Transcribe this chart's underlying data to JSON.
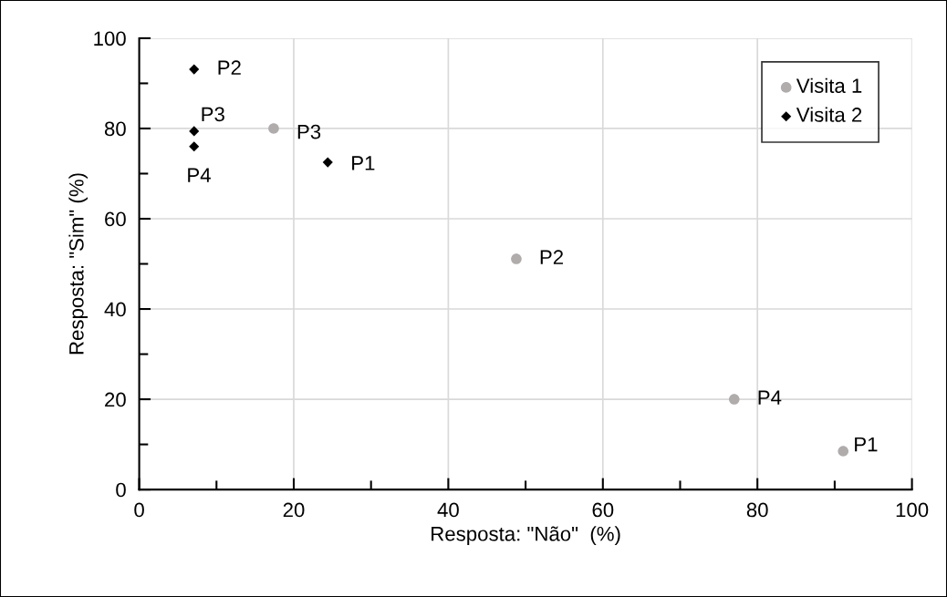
{
  "chart_data": {
    "type": "scatter",
    "xlabel": "Resposta: \"Não\"  (%)",
    "ylabel": "Resposta: \"Sim\" (%)",
    "xlim": [
      0,
      100
    ],
    "ylim": [
      0,
      100
    ],
    "xticks": [
      0,
      20,
      40,
      60,
      80,
      100
    ],
    "yticks": [
      0,
      20,
      40,
      60,
      80,
      100
    ],
    "grid": true,
    "legend": "top right",
    "series": [
      {
        "name": "Visita 1",
        "color": "#b0acac",
        "marker": "circle",
        "x": [
          91.1,
          48.8,
          17.4,
          77.0
        ],
        "values": [
          8.5,
          51.1,
          80.0,
          20.0
        ]
      },
      {
        "name": "Visita 2",
        "color": "#000000",
        "marker": "diamond",
        "x": [
          24.4,
          7.1,
          7.1,
          7.1
        ],
        "values": [
          72.5,
          93.1,
          79.4,
          76.0
        ]
      }
    ],
    "annotations": [
      {
        "text": "P1",
        "x": 91.1,
        "y": 8.5
      },
      {
        "text": "P2",
        "x": 48.8,
        "y": 51.1
      },
      {
        "text": "P3",
        "x": 17.4,
        "y": 80.0
      },
      {
        "text": "P4",
        "x": 77.0,
        "y": 20.0
      },
      {
        "text": "P1",
        "x": 24.4,
        "y": 72.5
      },
      {
        "text": "P2",
        "x": 7.1,
        "y": 93.1
      },
      {
        "text": "P3",
        "x": 7.1,
        "y": 79.4
      },
      {
        "text": "P4",
        "x": 7.1,
        "y": 76.0
      }
    ]
  }
}
